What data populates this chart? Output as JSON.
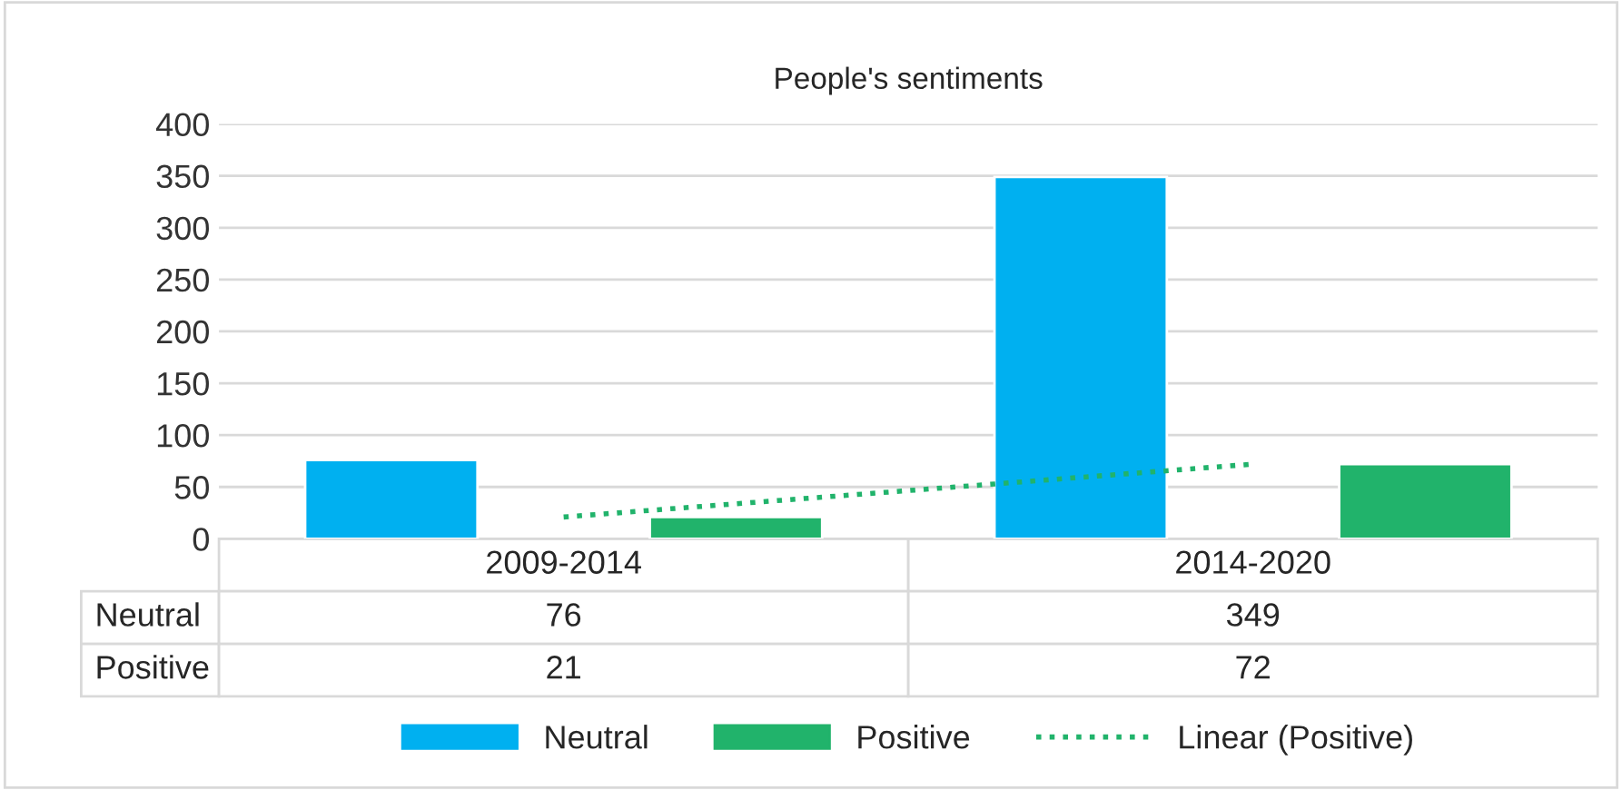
{
  "chart_data": {
    "type": "bar",
    "title": "People's sentiments",
    "categories": [
      "2009-2014",
      "2014-2020"
    ],
    "series": [
      {
        "name": "Neutral",
        "color": "#00b0f0",
        "values": [
          76,
          349
        ],
        "value_labels": [
          "76",
          "349"
        ]
      },
      {
        "name": "Positive",
        "color": "#21b36b",
        "values": [
          21,
          72
        ],
        "value_labels": [
          "21",
          "72"
        ]
      },
      {
        "name": "Linear (Positive)",
        "type": "line",
        "line_style": "dotted",
        "color": "#21b36b",
        "values": [
          21,
          72
        ]
      }
    ],
    "ylim": [
      0,
      400
    ],
    "yticks": [
      0,
      50,
      100,
      150,
      200,
      250,
      300,
      350,
      400
    ],
    "grid": "y",
    "legend": "bottom"
  }
}
